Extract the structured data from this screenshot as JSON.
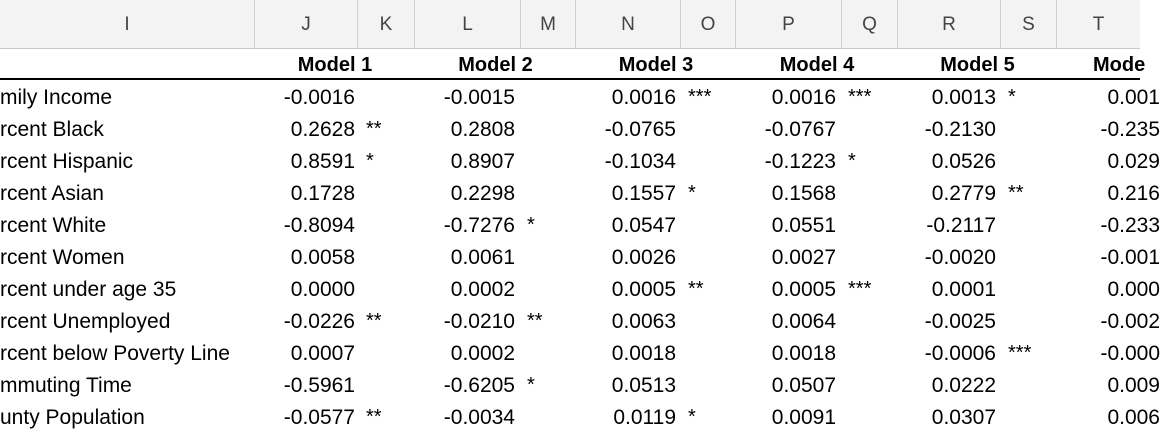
{
  "column_headers": [
    "I",
    "J",
    "K",
    "L",
    "M",
    "N",
    "O",
    "P",
    "Q",
    "R",
    "S",
    "T"
  ],
  "models": [
    "Model 1",
    "Model 2",
    "Model 3",
    "Model 4",
    "Model 5",
    "Mode"
  ],
  "rows": [
    {
      "label": "mily Income",
      "values": [
        "-0.0016",
        "-0.0015",
        "0.0016",
        "0.0016",
        "0.0013",
        "0.001"
      ],
      "sig": [
        "",
        "",
        "***",
        "***",
        "*",
        ""
      ]
    },
    {
      "label": "rcent Black",
      "values": [
        "0.2628",
        "0.2808",
        "-0.0765",
        "-0.0767",
        "-0.2130",
        "-0.235"
      ],
      "sig": [
        "**",
        "",
        "",
        "",
        "",
        ""
      ]
    },
    {
      "label": "rcent Hispanic",
      "values": [
        "0.8591",
        "0.8907",
        "-0.1034",
        "-0.1223",
        "0.0526",
        "0.029"
      ],
      "sig": [
        "*",
        "",
        "",
        "*",
        "",
        ""
      ]
    },
    {
      "label": "rcent Asian",
      "values": [
        "0.1728",
        "0.2298",
        "0.1557",
        "0.1568",
        "0.2779",
        "0.216"
      ],
      "sig": [
        "",
        "",
        "*",
        "",
        "**",
        ""
      ]
    },
    {
      "label": "rcent White",
      "values": [
        "-0.8094",
        "-0.7276",
        "0.0547",
        "0.0551",
        "-0.2117",
        "-0.233"
      ],
      "sig": [
        "",
        "*",
        "",
        "",
        "",
        ""
      ]
    },
    {
      "label": "rcent Women",
      "values": [
        "0.0058",
        "0.0061",
        "0.0026",
        "0.0027",
        "-0.0020",
        "-0.001"
      ],
      "sig": [
        "",
        "",
        "",
        "",
        "",
        ""
      ]
    },
    {
      "label": "rcent under age 35",
      "values": [
        "0.0000",
        "0.0002",
        "0.0005",
        "0.0005",
        "0.0001",
        "0.000"
      ],
      "sig": [
        "",
        "",
        "**",
        "***",
        "",
        ""
      ]
    },
    {
      "label": "rcent Unemployed",
      "values": [
        "-0.0226",
        "-0.0210",
        "0.0063",
        "0.0064",
        "-0.0025",
        "-0.002"
      ],
      "sig": [
        "**",
        "**",
        "",
        "",
        "",
        ""
      ]
    },
    {
      "label": "rcent below Poverty Line",
      "values": [
        "0.0007",
        "0.0002",
        "0.0018",
        "0.0018",
        "-0.0006",
        "-0.000"
      ],
      "sig": [
        "",
        "",
        "",
        "",
        "***",
        ""
      ]
    },
    {
      "label": "mmuting Time",
      "values": [
        "-0.5961",
        "-0.6205",
        "0.0513",
        "0.0507",
        "0.0222",
        "0.009"
      ],
      "sig": [
        "",
        "*",
        "",
        "",
        "",
        ""
      ]
    },
    {
      "label": "unty Population",
      "values": [
        "-0.0577",
        "-0.0034",
        "0.0119",
        "0.0091",
        "0.0307",
        "0.006"
      ],
      "sig": [
        "**",
        "",
        "*",
        "",
        "",
        ""
      ]
    }
  ]
}
